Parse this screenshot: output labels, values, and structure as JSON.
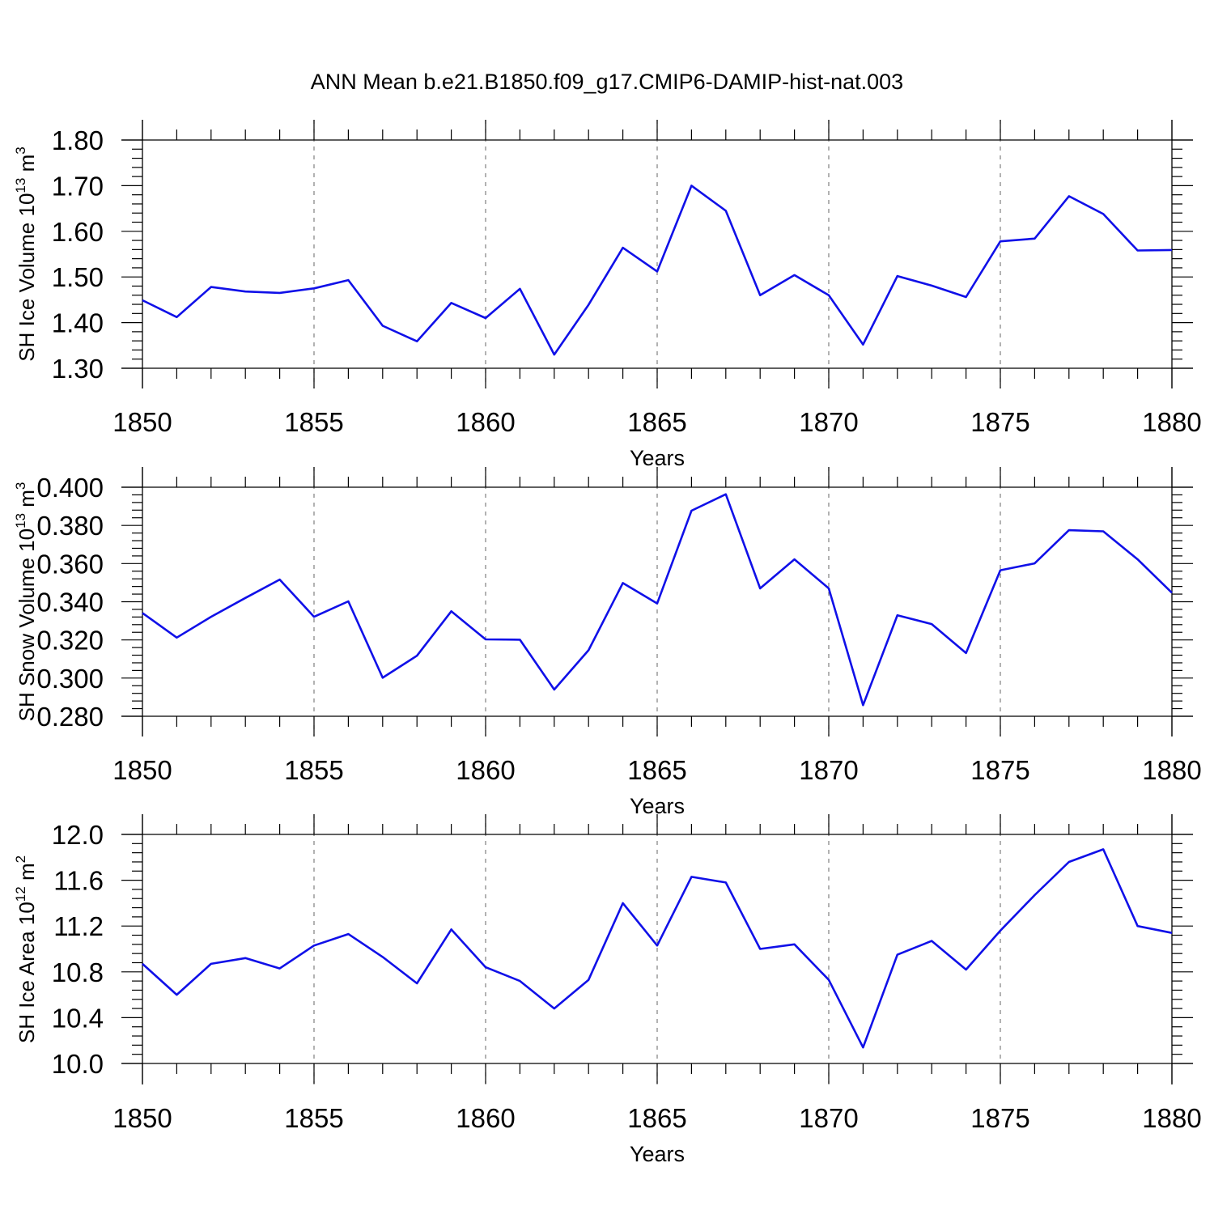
{
  "figure": {
    "title": "ANN Mean b.e21.B1850.f09_g17.CMIP6-DAMIP-hist-nat.003"
  },
  "chart_data": [
    {
      "type": "line",
      "title": "",
      "xlabel": "Years",
      "ylabel": "SH Ice Volume 10",
      "ylabel_exponent": "13",
      "ylabel_unit": " m",
      "ylabel_unit_exponent": "3",
      "xlim": [
        1850,
        1880
      ],
      "ylim": [
        1.3,
        1.8
      ],
      "x_ticks": [
        1850,
        1855,
        1860,
        1865,
        1870,
        1875,
        1880
      ],
      "x_tick_labels": [
        "1850",
        "1855",
        "1860",
        "1865",
        "1870",
        "1875",
        "1880"
      ],
      "y_ticks": [
        1.3,
        1.4,
        1.5,
        1.6,
        1.7,
        1.8
      ],
      "y_tick_labels": [
        "1.30",
        "1.40",
        "1.50",
        "1.60",
        "1.70",
        "1.80"
      ],
      "grid": "vertical dashed at major x ticks",
      "line_color": "#1010e8",
      "series": [
        {
          "x": [
            1850,
            1851,
            1852,
            1853,
            1854,
            1855,
            1856,
            1857,
            1858,
            1859,
            1860,
            1861,
            1862,
            1863,
            1864,
            1865,
            1866,
            1867,
            1868,
            1869,
            1870,
            1871,
            1872,
            1873,
            1874,
            1875,
            1876,
            1877,
            1878,
            1879,
            1880
          ],
          "values": [
            1.449,
            1.412,
            1.478,
            1.468,
            1.465,
            1.475,
            1.493,
            1.393,
            1.359,
            1.443,
            1.41,
            1.474,
            1.33,
            1.439,
            1.564,
            1.512,
            1.7,
            1.645,
            1.46,
            1.504,
            1.46,
            1.352,
            1.502,
            1.481,
            1.456,
            1.578,
            1.584,
            1.677,
            1.638,
            1.558,
            1.559
          ]
        }
      ]
    },
    {
      "type": "line",
      "title": "",
      "xlabel": "Years",
      "ylabel": "SH Snow Volume 10",
      "ylabel_exponent": "13",
      "ylabel_unit": " m",
      "ylabel_unit_exponent": "3",
      "xlim": [
        1850,
        1880
      ],
      "ylim": [
        0.28,
        0.4
      ],
      "x_ticks": [
        1850,
        1855,
        1860,
        1865,
        1870,
        1875,
        1880
      ],
      "x_tick_labels": [
        "1850",
        "1855",
        "1860",
        "1865",
        "1870",
        "1875",
        "1880"
      ],
      "y_ticks": [
        0.28,
        0.3,
        0.32,
        0.34,
        0.36,
        0.38,
        0.4
      ],
      "y_tick_labels": [
        "0.280",
        "0.300",
        "0.320",
        "0.340",
        "0.360",
        "0.380",
        "0.400"
      ],
      "grid": "vertical dashed at major x ticks",
      "line_color": "#1010e8",
      "series": [
        {
          "x": [
            1850,
            1851,
            1852,
            1853,
            1854,
            1855,
            1856,
            1857,
            1858,
            1859,
            1860,
            1861,
            1862,
            1863,
            1864,
            1865,
            1866,
            1867,
            1868,
            1869,
            1870,
            1871,
            1872,
            1873,
            1874,
            1875,
            1876,
            1877,
            1878,
            1879,
            1880
          ],
          "values": [
            0.3341,
            0.3212,
            0.3321,
            0.342,
            0.3516,
            0.3321,
            0.3402,
            0.3002,
            0.3117,
            0.335,
            0.3203,
            0.3201,
            0.294,
            0.3146,
            0.3498,
            0.3391,
            0.3877,
            0.3963,
            0.347,
            0.3622,
            0.347,
            0.2858,
            0.3329,
            0.3283,
            0.3131,
            0.3565,
            0.3601,
            0.3775,
            0.3769,
            0.3622,
            0.3447
          ]
        }
      ]
    },
    {
      "type": "line",
      "title": "",
      "xlabel": "Years",
      "ylabel": "SH Ice Area 10",
      "ylabel_exponent": "12",
      "ylabel_unit": " m",
      "ylabel_unit_exponent": "2",
      "xlim": [
        1850,
        1880
      ],
      "ylim": [
        9.9,
        12.0
      ],
      "x_ticks": [
        1850,
        1855,
        1860,
        1865,
        1870,
        1875,
        1880
      ],
      "x_tick_labels": [
        "1850",
        "1855",
        "1860",
        "1865",
        "1870",
        "1875",
        "1880"
      ],
      "y_ticks": [
        10.0,
        10.4,
        10.8,
        11.2,
        11.6,
        12.0
      ],
      "y_tick_labels": [
        "10.0",
        "10.4",
        "10.8",
        "11.2",
        "11.6",
        "12.0"
      ],
      "grid": "vertical dashed at major x ticks",
      "line_color": "#1010e8",
      "series": [
        {
          "x": [
            1850,
            1851,
            1852,
            1853,
            1854,
            1855,
            1856,
            1857,
            1858,
            1859,
            1860,
            1861,
            1862,
            1863,
            1864,
            1865,
            1866,
            1867,
            1868,
            1869,
            1870,
            1871,
            1872,
            1873,
            1874,
            1875,
            1876,
            1877,
            1878,
            1879,
            1880
          ],
          "values": [
            10.87,
            10.6,
            10.87,
            10.92,
            10.83,
            11.03,
            11.13,
            10.93,
            10.7,
            11.17,
            10.84,
            10.72,
            10.48,
            10.73,
            11.4,
            11.03,
            11.63,
            11.58,
            11.0,
            11.04,
            10.73,
            10.14,
            10.95,
            11.07,
            10.82,
            11.16,
            11.47,
            11.76,
            11.87,
            11.2,
            11.14
          ]
        }
      ]
    }
  ]
}
